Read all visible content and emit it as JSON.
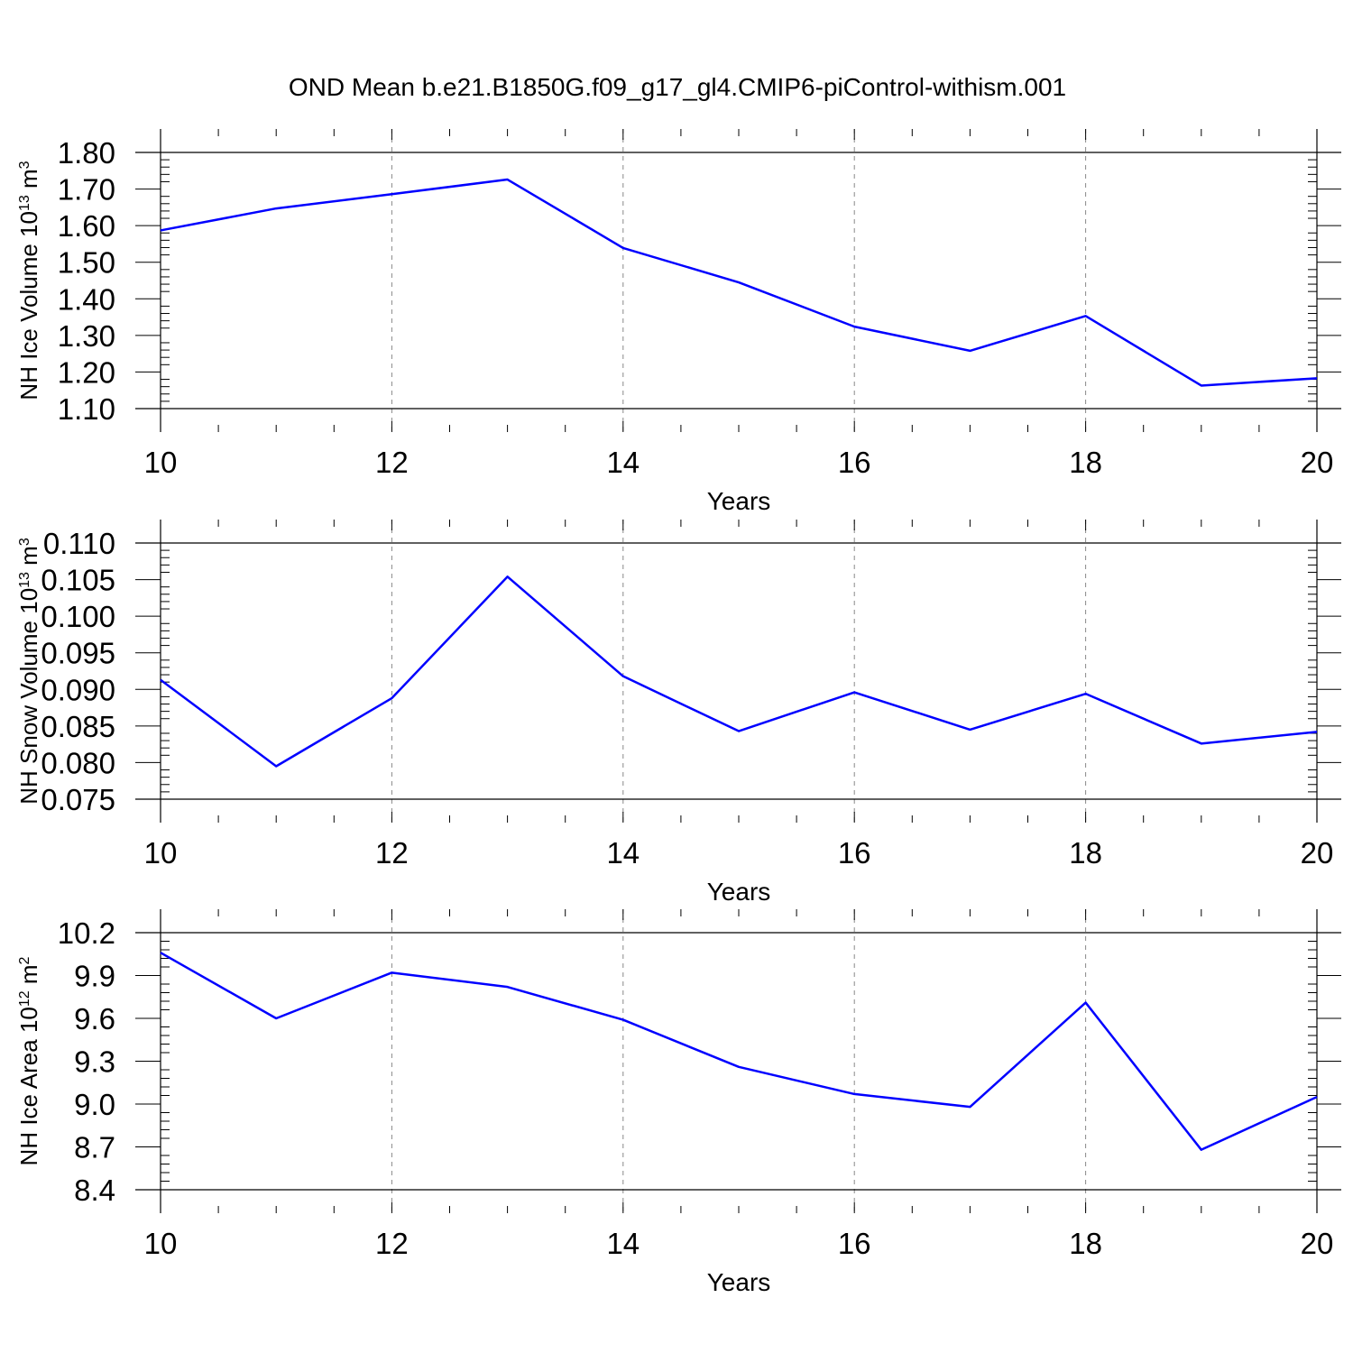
{
  "title": "OND Mean b.e21.B1850G.f09_g17_gl4.CMIP6-piControl-withism.001",
  "line_color": "#0000ff",
  "chart_data": [
    {
      "type": "line",
      "ylabel": {
        "text": "NH Ice Volume 10",
        "sup": "13",
        "unit": " m",
        "unit_sup": "3"
      },
      "xlabel": "Years",
      "xlim": [
        10,
        20
      ],
      "ylim": [
        1.1,
        1.8
      ],
      "x_ticks": [
        "10",
        "12",
        "14",
        "16",
        "18",
        "20"
      ],
      "y_ticks": [
        "1.10",
        "1.20",
        "1.30",
        "1.40",
        "1.50",
        "1.60",
        "1.70",
        "1.80"
      ],
      "grid": "dashed vertical at major x ticks",
      "series": [
        {
          "x": [
            10,
            11,
            12,
            13,
            14,
            15,
            16,
            17,
            18,
            19,
            20
          ],
          "y": [
            1.587,
            1.647,
            1.686,
            1.726,
            1.539,
            1.445,
            1.324,
            1.258,
            1.353,
            1.163,
            1.183
          ]
        }
      ]
    },
    {
      "type": "line",
      "ylabel": {
        "text": "NH Snow Volume 10",
        "sup": "13",
        "unit": " m",
        "unit_sup": "3"
      },
      "xlabel": "Years",
      "xlim": [
        10,
        20
      ],
      "ylim": [
        0.075,
        0.11
      ],
      "x_ticks": [
        "10",
        "12",
        "14",
        "16",
        "18",
        "20"
      ],
      "y_ticks": [
        "0.075",
        "0.080",
        "0.085",
        "0.090",
        "0.095",
        "0.100",
        "0.105",
        "0.110"
      ],
      "grid": "dashed vertical at major x ticks",
      "series": [
        {
          "x": [
            10,
            11,
            12,
            13,
            14,
            15,
            16,
            17,
            18,
            19,
            20
          ],
          "y": [
            0.0913,
            0.0795,
            0.0888,
            0.1054,
            0.0918,
            0.0843,
            0.0896,
            0.0845,
            0.0894,
            0.0826,
            0.0842
          ]
        }
      ]
    },
    {
      "type": "line",
      "ylabel": {
        "text": "NH Ice Area 10",
        "sup": "12",
        "unit": " m",
        "unit_sup": "2"
      },
      "xlabel": "Years",
      "xlim": [
        10,
        20
      ],
      "ylim": [
        8.4,
        10.2
      ],
      "x_ticks": [
        "10",
        "12",
        "14",
        "16",
        "18",
        "20"
      ],
      "y_ticks": [
        "8.4",
        "8.7",
        "9.0",
        "9.3",
        "9.6",
        "9.9",
        "10.2"
      ],
      "grid": "dashed vertical at major x ticks",
      "series": [
        {
          "x": [
            10,
            11,
            12,
            13,
            14,
            15,
            16,
            17,
            18,
            19,
            20
          ],
          "y": [
            10.06,
            9.6,
            9.92,
            9.82,
            9.59,
            9.26,
            9.07,
            8.98,
            9.71,
            8.68,
            9.05
          ]
        }
      ]
    }
  ]
}
